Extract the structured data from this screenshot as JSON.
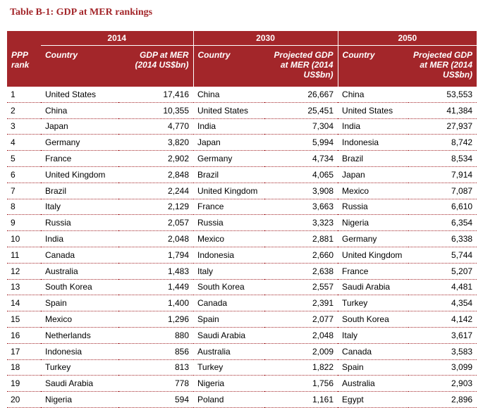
{
  "title": "Table B-1: GDP at MER rankings",
  "header": {
    "year_2014": "2014",
    "year_2030": "2030",
    "year_2050": "2050",
    "col_rank": "PPP rank",
    "col_country_2014": "Country",
    "col_gdp_2014": "GDP at MER (2014 US$bn)",
    "col_country_2030": "Country",
    "col_gdp_2030": "Projected GDP at MER (2014 US$bn)",
    "col_country_2050": "Country",
    "col_gdp_2050": "Projected GDP at MER (2014 US$bn)"
  },
  "rows": [
    {
      "rank": "1",
      "c2014": "United States",
      "g2014": "17,416",
      "c2030": "China",
      "g2030": "26,667",
      "c2050": "China",
      "g2050": "53,553"
    },
    {
      "rank": "2",
      "c2014": "China",
      "g2014": "10,355",
      "c2030": "United States",
      "g2030": "25,451",
      "c2050": "United States",
      "g2050": "41,384"
    },
    {
      "rank": "3",
      "c2014": "Japan",
      "g2014": "4,770",
      "c2030": "India",
      "g2030": "7,304",
      "c2050": "India",
      "g2050": "27,937"
    },
    {
      "rank": "4",
      "c2014": "Germany",
      "g2014": "3,820",
      "c2030": "Japan",
      "g2030": "5,994",
      "c2050": "Indonesia",
      "g2050": "8,742"
    },
    {
      "rank": "5",
      "c2014": "France",
      "g2014": "2,902",
      "c2030": "Germany",
      "g2030": "4,734",
      "c2050": "Brazil",
      "g2050": "8,534"
    },
    {
      "rank": "6",
      "c2014": "United Kingdom",
      "g2014": "2,848",
      "c2030": "Brazil",
      "g2030": "4,065",
      "c2050": "Japan",
      "g2050": "7,914"
    },
    {
      "rank": "7",
      "c2014": "Brazil",
      "g2014": "2,244",
      "c2030": "United Kingdom",
      "g2030": "3,908",
      "c2050": "Mexico",
      "g2050": "7,087"
    },
    {
      "rank": "8",
      "c2014": "Italy",
      "g2014": "2,129",
      "c2030": "France",
      "g2030": "3,663",
      "c2050": "Russia",
      "g2050": "6,610"
    },
    {
      "rank": "9",
      "c2014": "Russia",
      "g2014": "2,057",
      "c2030": "Russia",
      "g2030": "3,323",
      "c2050": "Nigeria",
      "g2050": "6,354"
    },
    {
      "rank": "10",
      "c2014": "India",
      "g2014": "2,048",
      "c2030": "Mexico",
      "g2030": "2,881",
      "c2050": "Germany",
      "g2050": "6,338"
    },
    {
      "rank": "11",
      "c2014": "Canada",
      "g2014": "1,794",
      "c2030": "Indonesia",
      "g2030": "2,660",
      "c2050": "United Kingdom",
      "g2050": "5,744"
    },
    {
      "rank": "12",
      "c2014": "Australia",
      "g2014": "1,483",
      "c2030": "Italy",
      "g2030": "2,638",
      "c2050": "France",
      "g2050": "5,207"
    },
    {
      "rank": "13",
      "c2014": "South Korea",
      "g2014": "1,449",
      "c2030": "South Korea",
      "g2030": "2,557",
      "c2050": "Saudi Arabia",
      "g2050": "4,481"
    },
    {
      "rank": "14",
      "c2014": "Spain",
      "g2014": "1,400",
      "c2030": "Canada",
      "g2030": "2,391",
      "c2050": "Turkey",
      "g2050": "4,354"
    },
    {
      "rank": "15",
      "c2014": "Mexico",
      "g2014": "1,296",
      "c2030": "Spain",
      "g2030": "2,077",
      "c2050": "South Korea",
      "g2050": "4,142"
    },
    {
      "rank": "16",
      "c2014": "Netherlands",
      "g2014": "880",
      "c2030": "Saudi Arabia",
      "g2030": "2,048",
      "c2050": "Italy",
      "g2050": "3,617"
    },
    {
      "rank": "17",
      "c2014": "Indonesia",
      "g2014": "856",
      "c2030": "Australia",
      "g2030": "2,009",
      "c2050": "Canada",
      "g2050": "3,583"
    },
    {
      "rank": "18",
      "c2014": "Turkey",
      "g2014": "813",
      "c2030": "Turkey",
      "g2030": "1,822",
      "c2050": "Spain",
      "g2050": "3,099"
    },
    {
      "rank": "19",
      "c2014": "Saudi Arabia",
      "g2014": "778",
      "c2030": "Nigeria",
      "g2030": "1,756",
      "c2050": "Australia",
      "g2050": "2,903"
    },
    {
      "rank": "20",
      "c2014": "Nigeria",
      "g2014": "594",
      "c2030": "Poland",
      "g2030": "1,161",
      "c2050": "Egypt",
      "g2050": "2,896"
    }
  ]
}
